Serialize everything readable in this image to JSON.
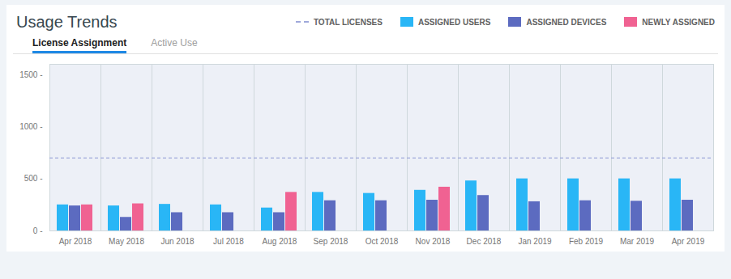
{
  "chart_data": {
    "type": "bar",
    "title": "Usage Trends",
    "annotations": [
      "License Assignment",
      "Active Use"
    ],
    "categories": [
      "Apr 2018",
      "May 2018",
      "Jun 2018",
      "Jul 2018",
      "Aug 2018",
      "Sep 2018",
      "Oct 2018",
      "Nov 2018",
      "Dec 2018",
      "Jan 2019",
      "Feb 2019",
      "Mar 2019",
      "Apr 2019"
    ],
    "series": [
      {
        "name": "TOTAL LICENSES",
        "type": "line",
        "line_style": "dashed",
        "color": "#9fa8da",
        "values": [
          700,
          700,
          700,
          700,
          700,
          700,
          700,
          700,
          700,
          700,
          700,
          700,
          700
        ]
      },
      {
        "name": "ASSIGNED USERS",
        "color": "#29b6f6",
        "values": [
          250,
          240,
          255,
          250,
          220,
          370,
          360,
          390,
          480,
          500,
          500,
          500,
          500
        ]
      },
      {
        "name": "ASSIGNED DEVICES",
        "color": "#5c6bc0",
        "values": [
          240,
          130,
          175,
          175,
          175,
          290,
          290,
          295,
          340,
          280,
          290,
          285,
          295
        ]
      },
      {
        "name": "NEWLY ASSIGNED",
        "color": "#f06292",
        "values": [
          250,
          260,
          0,
          0,
          370,
          0,
          0,
          420,
          0,
          0,
          0,
          0,
          0
        ]
      }
    ],
    "ylim": [
      0,
      1600
    ],
    "yticks": [
      {
        "value": 0,
        "label": "0 -"
      },
      {
        "value": 500,
        "label": "500 -"
      },
      {
        "value": 1000,
        "label": "1000 -"
      },
      {
        "value": 1500,
        "label": "1500 -"
      }
    ],
    "grid": false,
    "legend": "top"
  }
}
